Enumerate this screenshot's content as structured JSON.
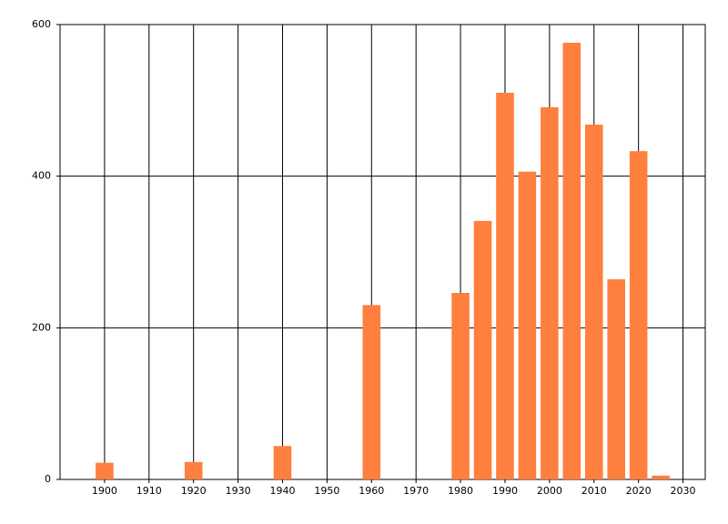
{
  "chart_data": {
    "type": "bar",
    "x": [
      1900,
      1920,
      1940,
      1960,
      1980,
      1985,
      1990,
      1995,
      2000,
      2005,
      2010,
      2015,
      2020,
      2025
    ],
    "values": [
      22,
      23,
      44,
      230,
      246,
      341,
      510,
      406,
      491,
      576,
      468,
      264,
      433,
      5
    ],
    "bar_width": 4,
    "color": "#ff7f3f",
    "xlim": [
      1890,
      2035
    ],
    "xticks": [
      1900,
      1910,
      1920,
      1930,
      1940,
      1950,
      1960,
      1970,
      1980,
      1990,
      2000,
      2010,
      2020,
      2030
    ],
    "ylim": [
      0,
      600
    ],
    "yticks": [
      0,
      200,
      400,
      600
    ],
    "grid": true
  }
}
